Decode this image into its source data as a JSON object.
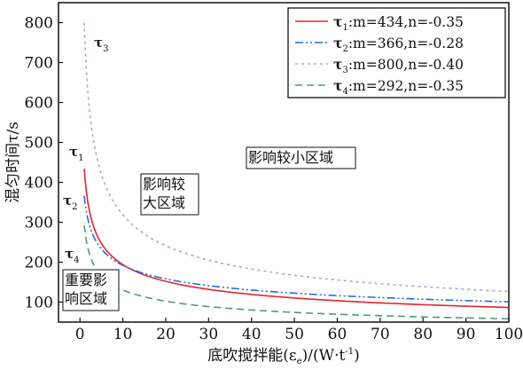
{
  "chart_data": {
    "type": "line",
    "xlabel": "底吹搅拌能(ε",
    "xlabel_sub": "e",
    "xlabel_unit": ")/(W·t",
    "xlabel_sup": "-1",
    "xlabel_end": ")",
    "ylabel": "混匀时间τ/s",
    "xlim": [
      -5,
      100
    ],
    "ylim": [
      50,
      850
    ],
    "xticks": [
      0,
      10,
      20,
      30,
      40,
      50,
      60,
      70,
      80,
      90,
      100
    ],
    "yticks": [
      100,
      200,
      300,
      400,
      500,
      600,
      700,
      800
    ],
    "grid": false,
    "legend_position": "top-right",
    "formula": "tau = m * epsilon^n",
    "series": [
      {
        "name": "τ",
        "sub": "1",
        "params": ":m=434,n=-0.35",
        "m": 434,
        "n": -0.35,
        "x_start": 1,
        "color": "#e8222e",
        "dash": "",
        "label": "τ",
        "label_sub": "1"
      },
      {
        "name": "τ",
        "sub": "2",
        "params": ":m=366,n=-0.28",
        "m": 366,
        "n": -0.28,
        "x_start": 1,
        "color": "#1f6fd6",
        "dash": "9,3,2,3,2,3",
        "label": "τ",
        "label_sub": "2"
      },
      {
        "name": "τ",
        "sub": "3",
        "params": ":m=800,n=-0.40",
        "m": 800,
        "n": -0.4,
        "x_start": 1,
        "color": "#a7a7d6",
        "dash": "3,4",
        "label": "τ",
        "label_sub": "3"
      },
      {
        "name": "τ",
        "sub": "4",
        "params": ":m=292,n=-0.35",
        "m": 292,
        "n": -0.35,
        "x_start": 1,
        "color": "#4d9c74",
        "dash": "8,5",
        "label": "τ",
        "label_sub": "4"
      }
    ],
    "annotations": [
      {
        "lines": [
          "影响较小区域"
        ],
        "boxed": true
      },
      {
        "lines": [
          "影响较",
          "大区域"
        ],
        "boxed": true
      },
      {
        "lines": [
          "重要影",
          "响区域"
        ],
        "boxed": true
      }
    ]
  }
}
